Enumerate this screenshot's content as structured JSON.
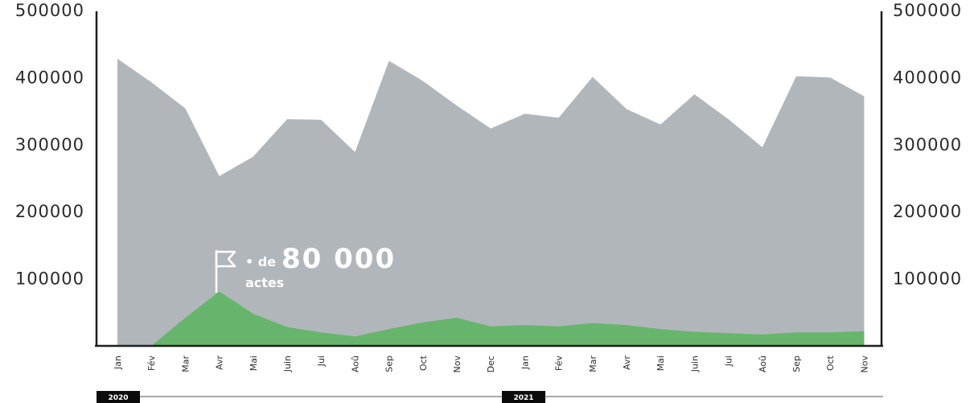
{
  "chart_data": {
    "type": "area",
    "categories": [
      "Jan",
      "Fév",
      "Mar",
      "Avr",
      "Mai",
      "Juin",
      "Jui",
      "Aoû",
      "Sep",
      "Oct",
      "Nov",
      "Dec",
      "Jan",
      "Fév",
      "Mar",
      "Avr",
      "Mai",
      "Juin",
      "Jui",
      "Aoû",
      "Sep",
      "Oct",
      "Nov"
    ],
    "series": [
      {
        "values": [
          428000,
          393000,
          354000,
          253000,
          282000,
          338000,
          337000,
          289000,
          425000,
          395000,
          358000,
          324000,
          346000,
          340000,
          401000,
          353000,
          330000,
          375000,
          338000,
          296000,
          402000,
          400000,
          372000
        ],
        "color": "#b1b6bb"
      },
      {
        "values": [
          0,
          0,
          42000,
          81000,
          48000,
          28000,
          20000,
          14000,
          25000,
          35000,
          42000,
          29000,
          31000,
          29000,
          34000,
          31000,
          25000,
          21000,
          19000,
          17000,
          20000,
          20000,
          22000
        ],
        "color": "#67b56c"
      }
    ],
    "ylim": [
      0,
      500000
    ],
    "yticks": [
      "500000",
      "400000",
      "300000",
      "200000",
      "100000"
    ],
    "years": [
      "2020",
      "2021"
    ],
    "annotation": {
      "prefix": "• de",
      "value": "80 000",
      "suffix": "actes"
    }
  }
}
